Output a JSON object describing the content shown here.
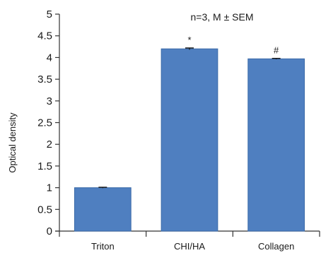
{
  "chart_data": {
    "type": "bar",
    "categories": [
      "Triton",
      "CHI/HA",
      "Collagen"
    ],
    "values": [
      1.0,
      4.2,
      3.97
    ],
    "errors": [
      0.01,
      0.02,
      0.01
    ],
    "significance": [
      "",
      "*",
      "#"
    ],
    "ylabel": "Optical density",
    "xlabel": "",
    "ylim": [
      0,
      5
    ],
    "yticks": [
      0,
      0.5,
      1,
      1.5,
      2,
      2.5,
      3,
      3.5,
      4,
      4.5,
      5
    ],
    "ytick_labels": [
      "0",
      "0.5",
      "1",
      "1.5",
      "2",
      "2.5",
      "3",
      "3.5",
      "4",
      "4.5",
      "5"
    ],
    "annotation": "n=3, M ± SEM",
    "bar_color": "#4f7fc0",
    "bar_edge_color": "#3a6aa8",
    "grid": false,
    "legend": "none"
  }
}
